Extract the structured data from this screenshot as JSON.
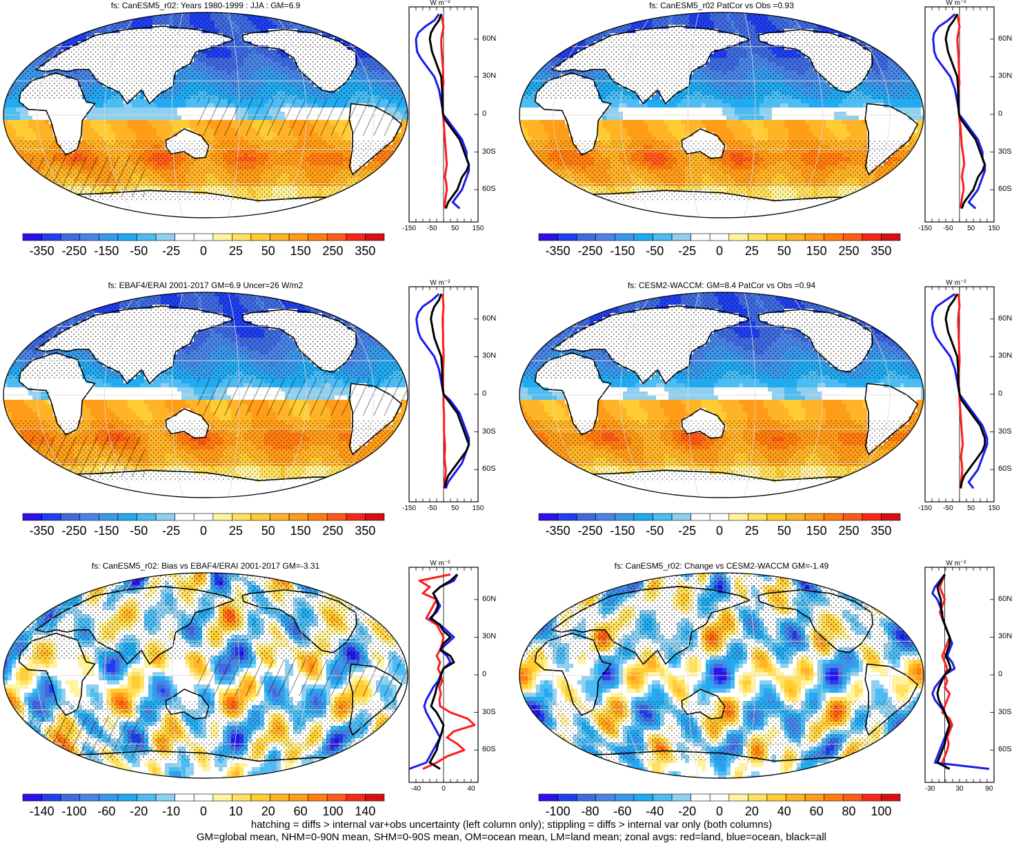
{
  "colors": {
    "scale": [
      "#2b12e6",
      "#1f3ff0",
      "#3f6ae0",
      "#4a84e6",
      "#3a98ea",
      "#22aaf0",
      "#4cbcf2",
      "#8fd0f0",
      "#ffffff",
      "#ffffff",
      "#fff3a0",
      "#ffe060",
      "#ffcc33",
      "#ffb428",
      "#ff9c18",
      "#ff7d10",
      "#ff5a18",
      "#f22818",
      "#d80e12"
    ],
    "land": "#ffffff",
    "zonal_land": "#ff1a1a",
    "zonal_ocean": "#1a1aee",
    "zonal_all": "#000000"
  },
  "caption": {
    "line1": "hatching = diffs > internal var+obs uncertainty (left column only); stippling = diffs > internal var only (both columns)",
    "line2": "GM=global mean, NHM=0-90N mean, SHM=0-90S mean, OM=ocean mean, LM=land mean; zonal avgs: red=land, blue=ocean, black=all"
  },
  "chart_data": [
    {
      "type": "heatmap",
      "title": "fs: CanESM5_r02: Years 1980-1999 : JJA : GM=6.9",
      "colorbar_labels": [
        "-350",
        "-250",
        "-150",
        "-50",
        "-25",
        "0",
        "25",
        "50",
        "150",
        "250",
        "350"
      ],
      "pattern": "clim",
      "hatching": true,
      "zonal": {
        "unit": "W m⁻²",
        "y_labels": [
          "60N",
          "30N",
          "0",
          "30S",
          "60S"
        ],
        "x_labels": [
          "-150",
          "-50",
          "50",
          "150"
        ],
        "xlim": [
          -150,
          150
        ],
        "lat": [
          80,
          75,
          70,
          65,
          60,
          55,
          50,
          45,
          40,
          35,
          30,
          25,
          20,
          15,
          10,
          5,
          0,
          -5,
          -10,
          -15,
          -20,
          -25,
          -30,
          -35,
          -40,
          -45,
          -50,
          -55,
          -60,
          -65,
          -70,
          -75
        ],
        "land": [
          -10,
          -5,
          0,
          -5,
          -10,
          -10,
          -8,
          -6,
          -4,
          -2,
          -2,
          0,
          -4,
          -6,
          -6,
          -4,
          -2,
          0,
          2,
          4,
          6,
          8,
          10,
          12,
          14,
          10,
          6,
          12,
          14,
          10,
          6,
          4
        ],
        "ocean": [
          -20,
          -40,
          -80,
          -110,
          -120,
          -118,
          -115,
          -100,
          -80,
          -60,
          -40,
          -30,
          -20,
          -15,
          -10,
          -5,
          -2,
          20,
          40,
          60,
          80,
          90,
          100,
          100,
          110,
          110,
          100,
          90,
          80,
          60,
          40,
          70
        ],
        "all": [
          -10,
          -20,
          -40,
          -55,
          -60,
          -55,
          -50,
          -40,
          -30,
          -20,
          -10,
          -8,
          -6,
          -6,
          -6,
          -4,
          -2,
          10,
          30,
          50,
          70,
          80,
          90,
          100,
          110,
          100,
          80,
          70,
          60,
          40,
          20,
          10
        ]
      }
    },
    {
      "type": "heatmap",
      "title": "fs: CanESM5_r02 PatCor vs Obs =0.93",
      "colorbar_labels": [
        "-350",
        "-250",
        "-150",
        "-50",
        "-25",
        "0",
        "25",
        "50",
        "150",
        "250",
        "350"
      ],
      "pattern": "clim",
      "hatching": false,
      "zonal": {
        "unit": "W m⁻²",
        "y_labels": [
          "60N",
          "30N",
          "0",
          "30S",
          "60S"
        ],
        "x_labels": [
          "-150",
          "-50",
          "50",
          "150"
        ],
        "xlim": [
          -150,
          150
        ],
        "lat": [
          80,
          75,
          70,
          65,
          60,
          55,
          50,
          45,
          40,
          35,
          30,
          25,
          20,
          15,
          10,
          5,
          0,
          -5,
          -10,
          -15,
          -20,
          -25,
          -30,
          -35,
          -40,
          -45,
          -50,
          -55,
          -60,
          -65,
          -70,
          -75
        ],
        "land": [
          -10,
          -5,
          0,
          -5,
          -10,
          -8,
          -6,
          -4,
          -4,
          -2,
          -2,
          0,
          -4,
          -6,
          -6,
          -4,
          -2,
          0,
          4,
          6,
          8,
          10,
          14,
          18,
          20,
          14,
          10,
          16,
          18,
          12,
          8,
          4
        ],
        "ocean": [
          -20,
          -50,
          -90,
          -110,
          -115,
          -112,
          -110,
          -100,
          -80,
          -60,
          -40,
          -30,
          -20,
          -15,
          -10,
          -5,
          -2,
          20,
          40,
          60,
          80,
          90,
          100,
          100,
          110,
          110,
          100,
          90,
          80,
          60,
          40,
          70
        ],
        "all": [
          -10,
          -25,
          -45,
          -55,
          -60,
          -55,
          -50,
          -40,
          -30,
          -20,
          -10,
          -8,
          -6,
          -6,
          -6,
          -4,
          -2,
          10,
          30,
          50,
          70,
          80,
          90,
          100,
          110,
          100,
          80,
          70,
          60,
          40,
          20,
          10
        ]
      }
    },
    {
      "type": "heatmap",
      "title": "fs: EBAF4/ERAI 2001-2017 GM=6.9 Uncer=26 W/m2",
      "colorbar_labels": [
        "-350",
        "-250",
        "-150",
        "-50",
        "-25",
        "0",
        "25",
        "50",
        "150",
        "250",
        "350"
      ],
      "pattern": "clim",
      "hatching": true,
      "zonal": {
        "unit": "W m⁻²",
        "y_labels": [
          "60N",
          "30N",
          "0",
          "30S",
          "60S"
        ],
        "x_labels": [
          "-150",
          "-50",
          "50",
          "150"
        ],
        "xlim": [
          -150,
          150
        ],
        "lat": [
          80,
          75,
          70,
          65,
          60,
          55,
          50,
          45,
          40,
          35,
          30,
          25,
          20,
          15,
          10,
          5,
          0,
          -5,
          -10,
          -15,
          -20,
          -25,
          -30,
          -35,
          -40,
          -45,
          -50,
          -55,
          -60,
          -65,
          -70,
          -75
        ],
        "land": [
          -5,
          -2,
          0,
          -2,
          -4,
          -4,
          -2,
          -2,
          -2,
          0,
          0,
          0,
          -2,
          -2,
          -2,
          -2,
          0,
          0,
          0,
          2,
          2,
          2,
          2,
          4,
          6,
          6,
          4,
          6,
          10,
          8,
          4,
          2
        ],
        "ocean": [
          -20,
          -50,
          -90,
          -110,
          -118,
          -115,
          -110,
          -100,
          -80,
          -60,
          -40,
          -30,
          -20,
          -15,
          -10,
          -5,
          0,
          30,
          50,
          70,
          80,
          90,
          100,
          110,
          110,
          100,
          90,
          80,
          60,
          40,
          20,
          10
        ],
        "all": [
          -10,
          -20,
          -40,
          -50,
          -55,
          -50,
          -45,
          -40,
          -30,
          -20,
          -10,
          -8,
          -6,
          -6,
          -6,
          -4,
          0,
          20,
          40,
          60,
          70,
          80,
          90,
          100,
          110,
          100,
          80,
          60,
          40,
          20,
          10,
          5
        ]
      }
    },
    {
      "type": "heatmap",
      "title": "fs: CESM2-WACCM: GM=8.4 PatCor vs Obs =0.94",
      "colorbar_labels": [
        "-350",
        "-250",
        "-150",
        "-50",
        "-25",
        "0",
        "25",
        "50",
        "150",
        "250",
        "350"
      ],
      "pattern": "clim",
      "hatching": false,
      "zonal": {
        "unit": "W m⁻²",
        "y_labels": [
          "60N",
          "30N",
          "0",
          "30S",
          "60S"
        ],
        "x_labels": [
          "-150",
          "-50",
          "50",
          "150"
        ],
        "xlim": [
          -150,
          150
        ],
        "lat": [
          80,
          75,
          70,
          65,
          60,
          55,
          50,
          45,
          40,
          35,
          30,
          25,
          20,
          15,
          10,
          5,
          0,
          -5,
          -10,
          -15,
          -20,
          -25,
          -30,
          -35,
          -40,
          -45,
          -50,
          -55,
          -60,
          -65,
          -70,
          -75
        ],
        "land": [
          -5,
          -2,
          0,
          -4,
          -6,
          -6,
          -4,
          -4,
          -2,
          -2,
          0,
          0,
          -2,
          -4,
          -4,
          -2,
          0,
          0,
          2,
          4,
          6,
          8,
          10,
          12,
          14,
          10,
          6,
          10,
          12,
          10,
          6,
          4
        ],
        "ocean": [
          -20,
          -60,
          -100,
          -115,
          -120,
          -118,
          -112,
          -100,
          -80,
          -60,
          -40,
          -30,
          -20,
          -15,
          -10,
          -5,
          0,
          20,
          40,
          60,
          80,
          100,
          110,
          120,
          120,
          110,
          100,
          90,
          80,
          60,
          40,
          60
        ],
        "all": [
          -10,
          -25,
          -45,
          -55,
          -60,
          -55,
          -50,
          -40,
          -30,
          -20,
          -10,
          -8,
          -6,
          -6,
          -6,
          -4,
          0,
          10,
          30,
          50,
          70,
          90,
          100,
          110,
          110,
          100,
          80,
          60,
          40,
          20,
          10,
          5
        ]
      }
    },
    {
      "type": "heatmap",
      "title": "fs: CanESM5_r02: Bias vs EBAF4/ERAI 2001-2017 GM=-3.31",
      "colorbar_labels": [
        "-140",
        "-100",
        "-60",
        "-20",
        "-10",
        "0",
        "10",
        "20",
        "60",
        "100",
        "140"
      ],
      "pattern": "diff",
      "hatching": true,
      "zonal": {
        "unit": "W m⁻²",
        "y_labels": [
          "60N",
          "30N",
          "0",
          "30S",
          "60S"
        ],
        "x_labels": [
          "-40",
          "0",
          "40"
        ],
        "xlim": [
          -50,
          50
        ],
        "lat": [
          80,
          75,
          70,
          65,
          60,
          55,
          50,
          45,
          40,
          35,
          30,
          25,
          20,
          15,
          10,
          5,
          0,
          -5,
          -10,
          -15,
          -20,
          -25,
          -30,
          -35,
          -40,
          -45,
          -50,
          -55,
          -60,
          -65,
          -70,
          -75
        ],
        "land": [
          10,
          -35,
          -20,
          -30,
          -10,
          -15,
          -20,
          -25,
          -10,
          -5,
          0,
          -2,
          -5,
          -10,
          -5,
          -8,
          -4,
          -2,
          -6,
          -4,
          -6,
          -5,
          10,
          35,
          45,
          15,
          5,
          20,
          30,
          5,
          -10,
          -30
        ],
        "ocean": [
          20,
          15,
          -5,
          -15,
          -10,
          -5,
          -10,
          -20,
          -5,
          5,
          15,
          5,
          -5,
          5,
          10,
          0,
          -4,
          -8,
          -15,
          -20,
          -25,
          -28,
          -25,
          -20,
          -15,
          -10,
          -5,
          -10,
          -15,
          -20,
          -25,
          -50
        ],
        "all": [
          20,
          10,
          -5,
          -15,
          -10,
          -8,
          -12,
          -18,
          -6,
          0,
          10,
          0,
          -4,
          10,
          15,
          0,
          -4,
          -6,
          -10,
          -12,
          -15,
          -18,
          -10,
          -5,
          0,
          -2,
          -5,
          -8,
          -10,
          -15,
          -20,
          -5
        ]
      }
    },
    {
      "type": "heatmap",
      "title": "fs: CanESM5_r02: Change vs CESM2-WACCM GM=-1.49",
      "colorbar_labels": [
        "-100",
        "-80",
        "-60",
        "-40",
        "-20",
        "0",
        "20",
        "40",
        "60",
        "80",
        "100"
      ],
      "pattern": "diff",
      "hatching": false,
      "zonal": {
        "unit": "W m⁻²",
        "y_labels": [
          "60N",
          "30N",
          "0",
          "30S",
          "60S"
        ],
        "x_labels": [
          "-30",
          "30",
          "90"
        ],
        "xlim": [
          -40,
          100
        ],
        "lat": [
          80,
          75,
          70,
          65,
          60,
          55,
          50,
          45,
          40,
          35,
          30,
          25,
          20,
          15,
          10,
          5,
          0,
          -5,
          -10,
          -15,
          -20,
          -25,
          -30,
          -35,
          -40,
          -45,
          -50,
          -55,
          -60,
          -65,
          -70,
          -75
        ],
        "land": [
          0,
          -5,
          -10,
          -5,
          0,
          -5,
          -10,
          -5,
          0,
          5,
          10,
          5,
          0,
          -5,
          0,
          5,
          0,
          5,
          0,
          10,
          5,
          0,
          -5,
          10,
          15,
          10,
          5,
          8,
          5,
          0,
          -5,
          5
        ],
        "ocean": [
          0,
          -10,
          -20,
          -25,
          -15,
          -10,
          -5,
          -5,
          0,
          5,
          10,
          15,
          10,
          5,
          15,
          20,
          0,
          -10,
          -20,
          -25,
          -20,
          -10,
          0,
          5,
          10,
          5,
          0,
          -5,
          -10,
          -15,
          -20,
          90
        ],
        "all": [
          0,
          -8,
          -15,
          -12,
          -8,
          -8,
          -6,
          -4,
          0,
          5,
          10,
          10,
          6,
          2,
          8,
          12,
          0,
          -6,
          -12,
          -15,
          -12,
          -6,
          0,
          5,
          10,
          6,
          2,
          0,
          -5,
          -10,
          -15,
          10
        ]
      }
    }
  ]
}
